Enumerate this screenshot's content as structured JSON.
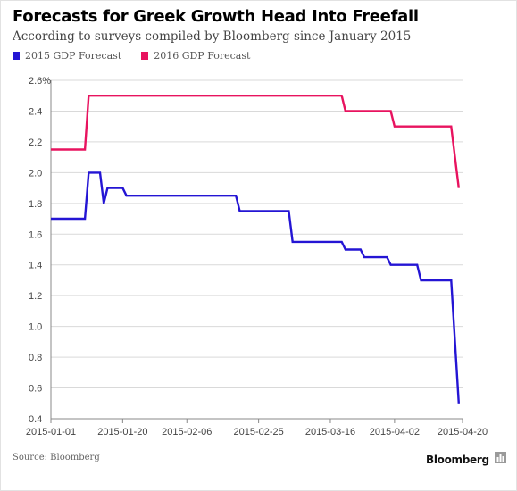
{
  "header": {
    "title": "Forecasts for Greek Growth Head Into Freefall",
    "subtitle": "According to surveys compiled by Bloomberg since January 2015"
  },
  "footer": {
    "source": "Source: Bloomberg",
    "brand": "Bloomberg"
  },
  "colors": {
    "series_2015": "#2415d4",
    "series_2016": "#e8135f",
    "grid": "#d9d9d9",
    "axis": "#888888"
  },
  "icons": {
    "brand": "bar-chart-icon"
  },
  "chart_data": {
    "type": "line",
    "title": "Forecasts for Greek Growth Head Into Freefall",
    "subtitle": "According to surveys compiled by Bloomberg since January 2015",
    "xlabel": "",
    "ylabel": "",
    "x_axis": {
      "type": "date",
      "range": [
        "2015-01-01",
        "2015-04-20"
      ],
      "tick_labels": [
        "2015-01-01",
        "2015-01-20",
        "2015-02-06",
        "2015-02-25",
        "2015-03-16",
        "2015-04-02",
        "2015-04-20"
      ]
    },
    "y_axis": {
      "range": [
        0.4,
        2.6
      ],
      "tick_values": [
        0.4,
        0.6,
        0.8,
        1.0,
        1.2,
        1.4,
        1.6,
        1.8,
        2.0,
        2.2,
        2.4,
        2.6
      ],
      "tick_labels": [
        "0.4",
        "0.6",
        "0.8",
        "1.0",
        "1.2",
        "1.4",
        "1.6",
        "1.8",
        "2.0",
        "2.2",
        "2.4",
        "2.6%"
      ]
    },
    "grid": true,
    "legend_position": "top-left",
    "series": [
      {
        "name": "2015 GDP Forecast",
        "color": "#2415d4",
        "points": [
          [
            "2015-01-01",
            1.7
          ],
          [
            "2015-01-10",
            1.7
          ],
          [
            "2015-01-11",
            2.0
          ],
          [
            "2015-01-14",
            2.0
          ],
          [
            "2015-01-15",
            1.8
          ],
          [
            "2015-01-16",
            1.9
          ],
          [
            "2015-01-20",
            1.9
          ],
          [
            "2015-01-21",
            1.85
          ],
          [
            "2015-02-19",
            1.85
          ],
          [
            "2015-02-20",
            1.75
          ],
          [
            "2015-03-05",
            1.75
          ],
          [
            "2015-03-06",
            1.55
          ],
          [
            "2015-03-19",
            1.55
          ],
          [
            "2015-03-20",
            1.5
          ],
          [
            "2015-03-24",
            1.5
          ],
          [
            "2015-03-25",
            1.45
          ],
          [
            "2015-03-31",
            1.45
          ],
          [
            "2015-04-01",
            1.4
          ],
          [
            "2015-04-08",
            1.4
          ],
          [
            "2015-04-09",
            1.3
          ],
          [
            "2015-04-17",
            1.3
          ],
          [
            "2015-04-19",
            0.5
          ]
        ]
      },
      {
        "name": "2016 GDP Forecast",
        "color": "#e8135f",
        "points": [
          [
            "2015-01-01",
            2.15
          ],
          [
            "2015-01-10",
            2.15
          ],
          [
            "2015-01-11",
            2.5
          ],
          [
            "2015-03-19",
            2.5
          ],
          [
            "2015-03-20",
            2.4
          ],
          [
            "2015-04-01",
            2.4
          ],
          [
            "2015-04-02",
            2.3
          ],
          [
            "2015-04-17",
            2.3
          ],
          [
            "2015-04-19",
            1.9
          ]
        ]
      }
    ]
  }
}
